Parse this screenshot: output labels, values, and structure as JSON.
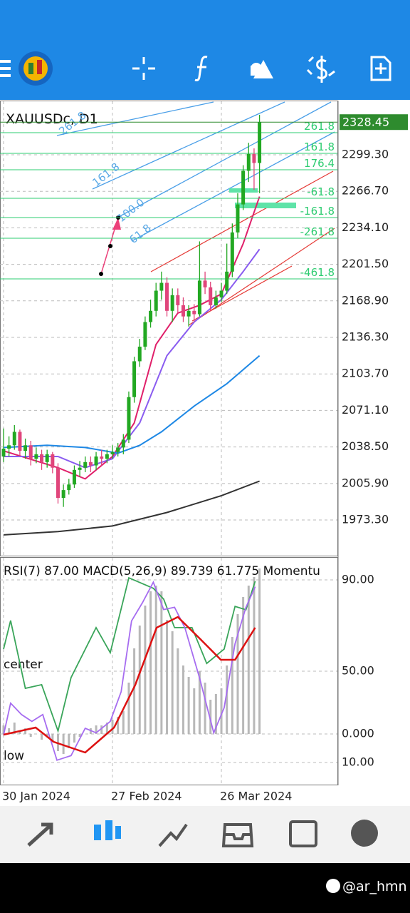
{
  "chart_data": [
    {
      "type": "candlestick",
      "symbol_label": "XAUUSDc, D1",
      "current_price": 2328.45,
      "up_color": "#22a822",
      "down_color": "#e0457b",
      "x": [
        0,
        1,
        2,
        3,
        4,
        5,
        6,
        7,
        8,
        9,
        10,
        11,
        12,
        13,
        14,
        15,
        16,
        17,
        18,
        19,
        20,
        21,
        22,
        23,
        24,
        25,
        26,
        27,
        28,
        29,
        30,
        31,
        32,
        33,
        34,
        35,
        36,
        37,
        38,
        39,
        40,
        41,
        42,
        43,
        44,
        45,
        46,
        47
      ],
      "open": [
        2030,
        2037,
        2040,
        2052,
        2035,
        2040,
        2028,
        2032,
        2025,
        2032,
        2020,
        1993,
        2000,
        2005,
        2018,
        2020,
        2025,
        2022,
        2030,
        2028,
        2032,
        2034,
        2038,
        2045,
        2083,
        2115,
        2128,
        2150,
        2160,
        2178,
        2185,
        2160,
        2174,
        2165,
        2155,
        2160,
        2157,
        2187,
        2181,
        2165,
        2172,
        2178,
        2195,
        2230,
        2255,
        2285,
        2300,
        2292
      ],
      "high": [
        2055,
        2048,
        2058,
        2054,
        2046,
        2044,
        2038,
        2036,
        2036,
        2034,
        2024,
        2005,
        2010,
        2022,
        2026,
        2030,
        2030,
        2034,
        2036,
        2036,
        2040,
        2042,
        2050,
        2088,
        2119,
        2135,
        2155,
        2170,
        2185,
        2195,
        2190,
        2180,
        2180,
        2172,
        2165,
        2166,
        2222,
        2195,
        2186,
        2178,
        2185,
        2220,
        2238,
        2265,
        2290,
        2310,
        2305,
        2335
      ],
      "low": [
        2025,
        2030,
        2036,
        2030,
        2028,
        2022,
        2024,
        2018,
        2020,
        2015,
        1988,
        1985,
        1996,
        2002,
        2012,
        2016,
        2016,
        2018,
        2022,
        2024,
        2028,
        2030,
        2032,
        2042,
        2078,
        2110,
        2125,
        2145,
        2155,
        2170,
        2155,
        2150,
        2158,
        2150,
        2146,
        2150,
        2155,
        2175,
        2160,
        2162,
        2168,
        2175,
        2190,
        2225,
        2250,
        2275,
        2268,
        2265
      ],
      "close": [
        2037,
        2040,
        2052,
        2035,
        2040,
        2028,
        2032,
        2025,
        2032,
        2020,
        1993,
        2000,
        2005,
        2018,
        2020,
        2025,
        2022,
        2030,
        2028,
        2032,
        2034,
        2038,
        2045,
        2083,
        2115,
        2128,
        2150,
        2160,
        2178,
        2185,
        2160,
        2174,
        2165,
        2155,
        2160,
        2157,
        2187,
        2181,
        2165,
        2172,
        2178,
        2195,
        2230,
        2255,
        2285,
        2300,
        2292,
        2328.45
      ],
      "moving_averages": [
        {
          "color": "#e0206a",
          "x": [
            0,
            10,
            15,
            20,
            24,
            28,
            32,
            36,
            40,
            44,
            47
          ],
          "values": [
            2035,
            2020,
            2010,
            2030,
            2060,
            2130,
            2158,
            2165,
            2175,
            2220,
            2262
          ]
        },
        {
          "color": "#8a5cf0",
          "x": [
            0,
            10,
            15,
            20,
            25,
            30,
            35,
            40,
            44,
            47
          ],
          "values": [
            2030,
            2030,
            2020,
            2028,
            2060,
            2120,
            2150,
            2170,
            2195,
            2215
          ]
        },
        {
          "color": "#1e88e5",
          "x": [
            0,
            8,
            15,
            21,
            25,
            29,
            35,
            41,
            47
          ],
          "values": [
            2038,
            2040,
            2038,
            2033,
            2040,
            2052,
            2075,
            2095,
            2120
          ]
        },
        {
          "color": "#333333",
          "x": [
            0,
            10,
            20,
            30,
            40,
            47
          ],
          "values": [
            1960,
            1963,
            1968,
            1980,
            1995,
            2008
          ]
        }
      ],
      "fib_levels": [
        {
          "label": "261.8",
          "price": 2319
        },
        {
          "label": "161.8",
          "price": 2300.6
        },
        {
          "label": "176.4",
          "price": 2285.9
        },
        {
          "label": "-61.8",
          "price": 2260.5
        },
        {
          "label": "-161.8",
          "price": 2243.3
        },
        {
          "label": "-261.8",
          "price": 2224.8
        },
        {
          "label": "-461.8",
          "price": 2188.5
        }
      ],
      "fan_labels": [
        "261.8",
        "161.8",
        "100.0",
        "61.8"
      ],
      "xlim": [
        -0.65,
        61.3
      ],
      "xticks": [
        {
          "value": 0,
          "label": "30 Jan 2024"
        },
        {
          "value": 20,
          "label": "27 Feb 2024"
        },
        {
          "value": 40,
          "label": "26 Mar 2024"
        }
      ],
      "ylim": [
        1940.85,
        2347.05
      ],
      "yticks": [
        {
          "value": 2299.3,
          "label": "2299.30"
        },
        {
          "value": 2266.7,
          "label": "2266.70"
        },
        {
          "value": 2234.1,
          "label": "2234.10"
        },
        {
          "value": 2201.5,
          "label": "2201.50"
        },
        {
          "value": 2168.9,
          "label": "2168.90"
        },
        {
          "value": 2136.3,
          "label": "2136.30"
        },
        {
          "value": 2103.7,
          "label": "2103.70"
        },
        {
          "value": 2071.1,
          "label": "2071.10"
        },
        {
          "value": 2038.5,
          "label": "2038.50"
        },
        {
          "value": 2005.9,
          "label": "2005.90"
        },
        {
          "value": 1973.3,
          "label": "1973.30"
        }
      ],
      "grid": true
    },
    {
      "type": "indicator",
      "header": "RSI(7) 87.00 MACD(5,26,9) 89.739 61.775 Momentu",
      "level_labels": [
        "center",
        "low"
      ],
      "ylim": [
        0,
        100
      ],
      "yticks": [
        {
          "value": 90,
          "label": "90.00"
        },
        {
          "value": 50,
          "label": "50.00"
        }
      ],
      "y2lim": [
        -18,
        62
      ],
      "y2ticks": [
        {
          "value": 0,
          "label": "0.000"
        },
        {
          "value": -10,
          "label": "10.00"
        }
      ],
      "histogram": {
        "color": "#b8b8b8",
        "axis": "y2",
        "values": [
          3,
          2,
          4,
          1,
          2,
          -1,
          0,
          -2,
          -1,
          -3,
          -6,
          -7,
          -5,
          -3,
          -1,
          0,
          2,
          3,
          3,
          4,
          5,
          6,
          8,
          18,
          30,
          38,
          45,
          50,
          52,
          50,
          40,
          36,
          30,
          24,
          20,
          16,
          22,
          18,
          12,
          14,
          16,
          24,
          34,
          42,
          48,
          52,
          55,
          58
        ]
      },
      "series": [
        {
          "color": "#3aa55a",
          "x": [
            0,
            1.3,
            4,
            7,
            10,
            12.4,
            17,
            19.6,
            23,
            27.5,
            29.4,
            31.4,
            34.6,
            37.3,
            40.5,
            42.5,
            44.5,
            46.2
          ],
          "values": [
            59.7,
            72.2,
            42.5,
            44.1,
            23.8,
            47.2,
            69.1,
            58.1,
            90.9,
            86.3,
            81.6,
            69.1,
            69.1,
            53.4,
            59.7,
            78.4,
            76.9,
            89.4
          ]
        },
        {
          "color": "#a66cf0",
          "x": [
            0,
            1.3,
            3.3,
            5.2,
            7.2,
            9.8,
            12.4,
            15,
            17,
            19.6,
            21.6,
            23.5,
            25.5,
            27.5,
            29.4,
            31.4,
            33.3,
            36,
            38.6,
            40.5,
            42.5,
            44.5,
            46.2
          ],
          "values": [
            22,
            36,
            31,
            28,
            31,
            11,
            13,
            25,
            23,
            28,
            41,
            72,
            80,
            89,
            77,
            78,
            69,
            47,
            23,
            34,
            62,
            78,
            87
          ]
        },
        {
          "color": "#dd1111",
          "axis": "y2",
          "x": [
            0,
            5.9,
            9.2,
            15,
            20.3,
            24.2,
            28.1,
            32,
            36,
            39.9,
            42.5,
            46.2
          ],
          "values": [
            -0.25,
            2.25,
            -2.75,
            -6.5,
            2.25,
            17.25,
            37.25,
            41,
            33.5,
            26,
            26,
            37.25
          ]
        }
      ]
    }
  ],
  "footer": {
    "watermark": "@ar_hmn"
  }
}
